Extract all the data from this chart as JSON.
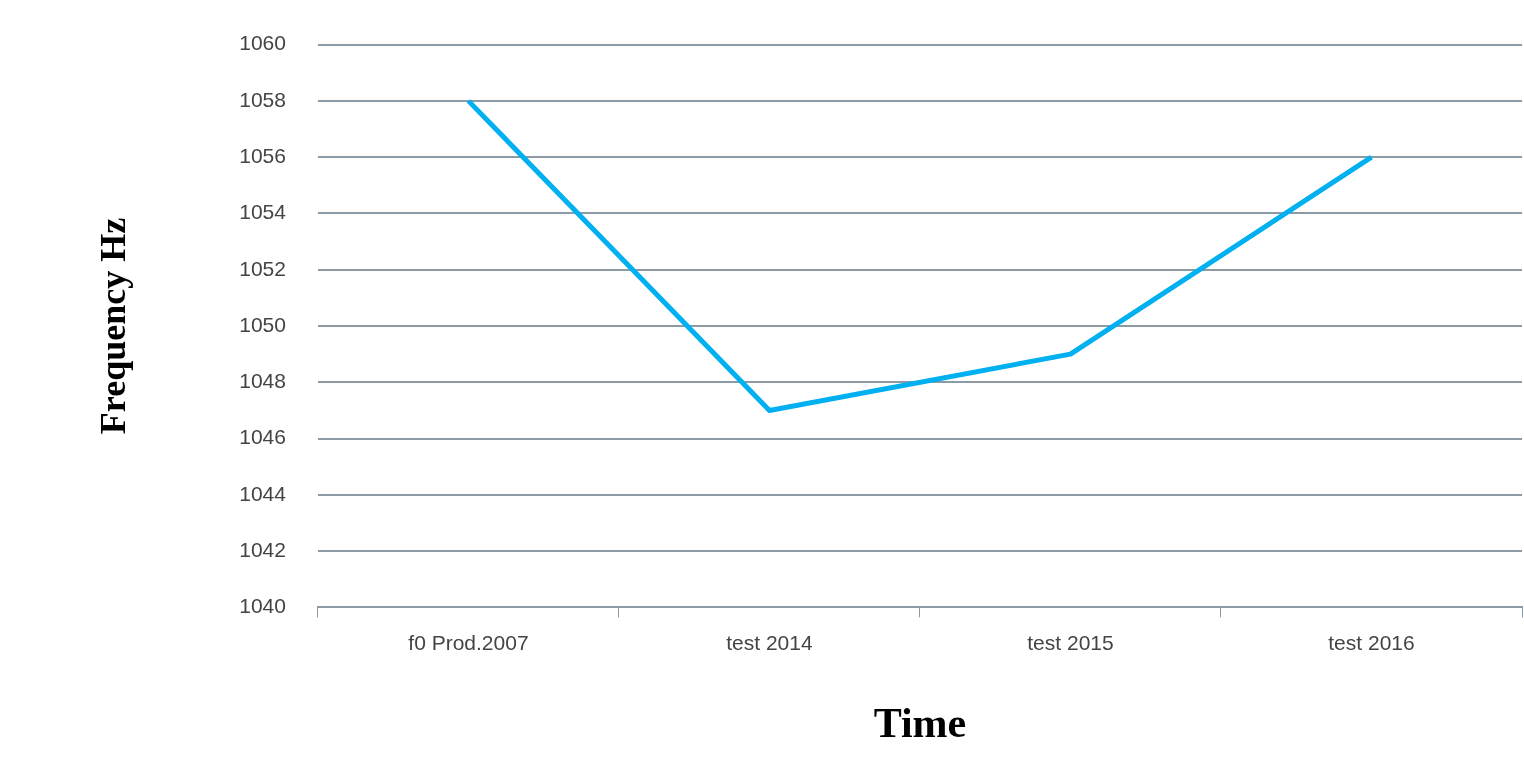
{
  "chart_data": {
    "type": "line",
    "xlabel": "Time",
    "ylabel": "Frequency Hz",
    "categories": [
      "f0 Prod.2007",
      "test 2014",
      "test 2015",
      "test 2016"
    ],
    "series": [
      {
        "color": "#00b0f0",
        "values": [
          1058,
          1047,
          1049,
          1056
        ]
      }
    ],
    "ylim": [
      1040,
      1060
    ],
    "yticks": [
      1040,
      1042,
      1044,
      1046,
      1048,
      1050,
      1052,
      1054,
      1056,
      1058,
      1060
    ],
    "grid": "y",
    "legend": false,
    "marker": "none",
    "line_style": "solid"
  }
}
